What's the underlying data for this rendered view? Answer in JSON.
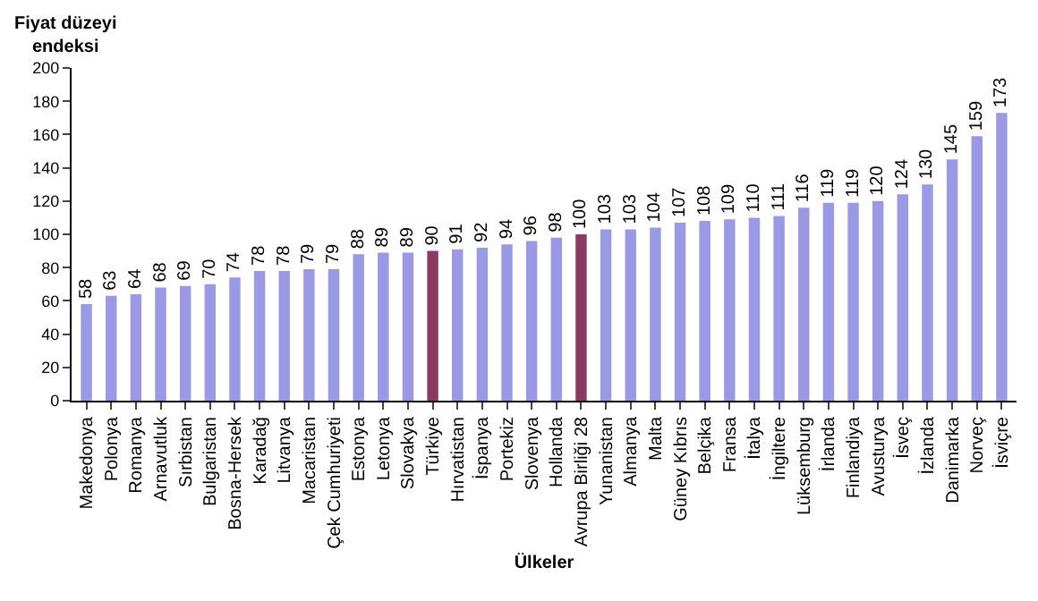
{
  "chart_data": {
    "type": "bar",
    "xlabel": "Ülkeler",
    "ylabel": "Fiyat düzeyi endeksi",
    "categories": [
      "Makedonya",
      "Polonya",
      "Romanya",
      "Arnavutluk",
      "Sırbistan",
      "Bulgaristan",
      "Bosna-Hersek",
      "Karadağ",
      "Litvanya",
      "Macaristan",
      "Çek Cumhuriyeti",
      "Estonya",
      "Letonya",
      "Slovakya",
      "Türkiye",
      "Hırvatistan",
      "İspanya",
      "Portekiz",
      "Slovenya",
      "Hollanda",
      "Avrupa Birliği 28",
      "Yunanistan",
      "Almanya",
      "Malta",
      "Güney Kıbrıs",
      "Belçika",
      "Fransa",
      "İtalya",
      "İngiltere",
      "Lüksemburg",
      "İrlanda",
      "Finlandiya",
      "Avusturya",
      "İsveç",
      "İzlanda",
      "Danimarka",
      "Norveç",
      "İsviçre"
    ],
    "values": [
      58,
      63,
      64,
      68,
      69,
      70,
      74,
      78,
      78,
      79,
      79,
      88,
      89,
      89,
      90,
      91,
      92,
      94,
      96,
      98,
      100,
      103,
      103,
      104,
      107,
      108,
      109,
      110,
      111,
      116,
      119,
      119,
      120,
      124,
      130,
      145,
      159,
      173
    ],
    "colors": [
      "#9999e6",
      "#9999e6",
      "#9999e6",
      "#9999e6",
      "#9999e6",
      "#9999e6",
      "#9999e6",
      "#9999e6",
      "#9999e6",
      "#9999e6",
      "#9999e6",
      "#9999e6",
      "#9999e6",
      "#9999e6",
      "#8b3a62",
      "#9999e6",
      "#9999e6",
      "#9999e6",
      "#9999e6",
      "#9999e6",
      "#8b3a62",
      "#9999e6",
      "#9999e6",
      "#9999e6",
      "#9999e6",
      "#9999e6",
      "#9999e6",
      "#9999e6",
      "#9999e6",
      "#9999e6",
      "#9999e6",
      "#9999e6",
      "#9999e6",
      "#9999e6",
      "#9999e6",
      "#9999e6",
      "#9999e6",
      "#9999e6"
    ],
    "ylim": [
      0,
      200
    ],
    "yticks": [
      0,
      20,
      40,
      60,
      80,
      100,
      120,
      140,
      160,
      180,
      200
    ],
    "data_labels": true
  }
}
